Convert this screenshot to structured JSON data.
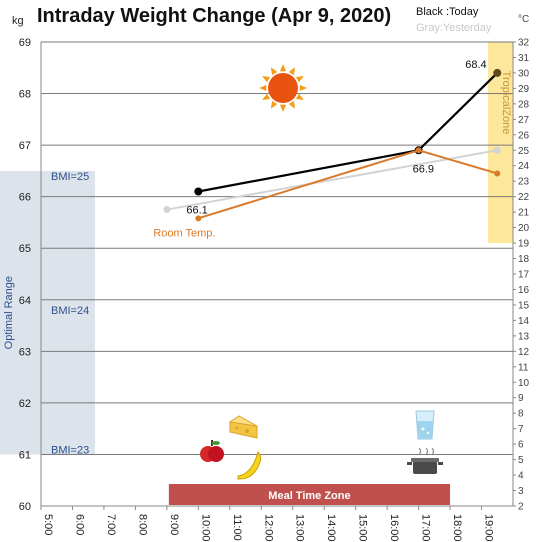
{
  "chart_data": {
    "type": "line",
    "title": "Intraday Weight Change (Apr 9, 2020)",
    "ylabel": "kg",
    "y2label": "°C",
    "legend": {
      "today": "Black :Today",
      "yesterday": "Gray:Yesterday"
    },
    "x_ticks": [
      "5:00",
      "6:00",
      "7:00",
      "8:00",
      "9:00",
      "10:00",
      "11:00",
      "12:00",
      "13:00",
      "14:00",
      "15:00",
      "16:00",
      "17:00",
      "18:00",
      "19:00"
    ],
    "xlim": [
      5,
      20
    ],
    "ylim": [
      60,
      69
    ],
    "y2lim": [
      2,
      32
    ],
    "y_ticks": [
      60,
      61,
      62,
      63,
      64,
      65,
      66,
      67,
      68,
      69
    ],
    "y2_ticks": [
      2,
      3,
      4,
      5,
      6,
      7,
      8,
      9,
      10,
      11,
      12,
      13,
      14,
      15,
      16,
      17,
      18,
      19,
      20,
      21,
      22,
      23,
      24,
      25,
      26,
      27,
      28,
      29,
      30,
      31,
      32
    ],
    "grid": true,
    "series": [
      {
        "name": "Today",
        "color": "#000000",
        "marker_color": "#5c4a1e",
        "x": [
          "10:00",
          "17:00",
          "19:30"
        ],
        "y": [
          66.1,
          66.9,
          68.4
        ],
        "labels": [
          "66.1",
          "66.9",
          "68.4"
        ]
      },
      {
        "name": "Yesterday",
        "color": "#d3d3d3",
        "x": [
          "9:00",
          "19:30"
        ],
        "y": [
          65.75,
          66.9
        ]
      },
      {
        "name": "Room Temp.",
        "axis": "right",
        "color": "#d97a2b",
        "x": [
          "10:00",
          "17:00",
          "19:30"
        ],
        "y": [
          20.6,
          25.0,
          23.5
        ]
      }
    ],
    "annotations": {
      "optimal_range": {
        "label": "Optimal Range",
        "from": 61.0,
        "to": 66.5,
        "color": "#dde3ea"
      },
      "bmi_lines": [
        {
          "label": "BMI=25",
          "value": 66.4
        },
        {
          "label": "BMI=24",
          "value": 63.8
        },
        {
          "label": "BMI=23",
          "value": 61.1
        }
      ],
      "tropical_zone": {
        "label": "TropicalZone",
        "from": 19,
        "to": 32,
        "color": "#fde79a"
      },
      "meal_time_zone": {
        "label": "Meal Time Zone",
        "from": "9:00",
        "to": "18:00",
        "color": "#c0504d"
      },
      "room_temp_label": "Room Temp.",
      "icons": [
        "sun-icon",
        "apple-icon",
        "cheese-icon",
        "banana-icon",
        "water-glass-icon",
        "cooking-pot-icon"
      ]
    }
  }
}
